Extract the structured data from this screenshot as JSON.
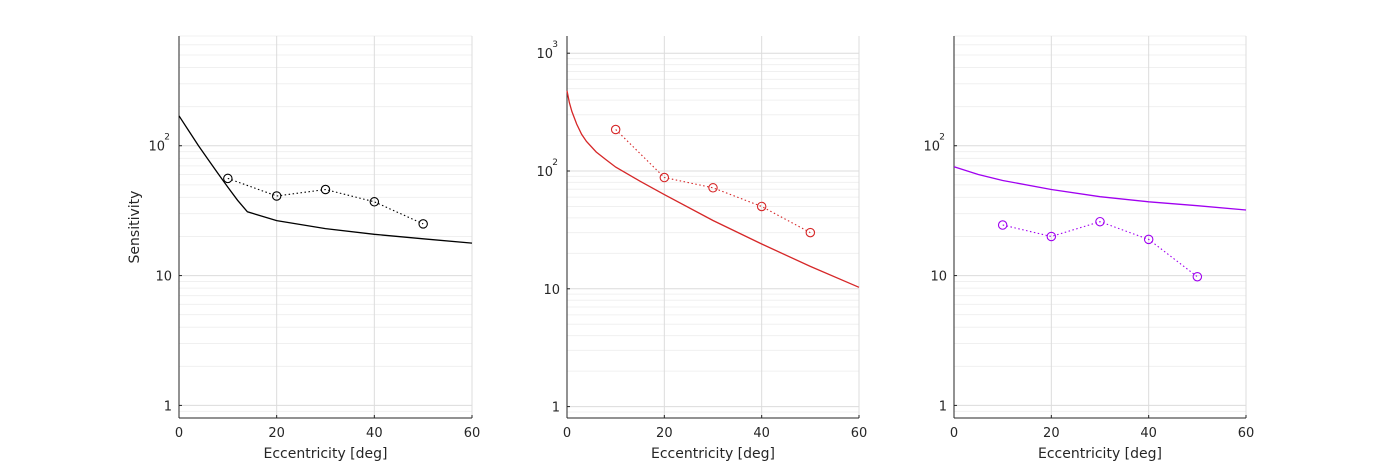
{
  "chart_data": [
    {
      "type": "line",
      "xlabel": "Eccentricity [deg]",
      "ylabel": "Sensitivity",
      "xlim": [
        0,
        60
      ],
      "ylim": [
        0.8,
        700
      ],
      "yscale": "log",
      "grid": true,
      "x_ticks": [
        "0",
        "20",
        "40",
        "60"
      ],
      "y_ticks": [
        {
          "value": 1,
          "base": "1",
          "exp": ""
        },
        {
          "value": 10,
          "base": "10",
          "exp": ""
        },
        {
          "value": 100,
          "base": "10",
          "exp": "2"
        }
      ],
      "color": "#000000",
      "series": [
        {
          "style": "markers-dotted",
          "x": [
            10,
            20,
            30,
            40,
            50
          ],
          "y": [
            56,
            41,
            46,
            37,
            25
          ]
        },
        {
          "style": "solid",
          "x": [
            0,
            2,
            4,
            6,
            8,
            10,
            12,
            14,
            20,
            30,
            40,
            50,
            60
          ],
          "y": [
            170,
            130,
            100,
            78,
            61,
            48,
            38,
            31,
            26.5,
            23,
            20.8,
            19.2,
            17.8
          ]
        }
      ]
    },
    {
      "type": "line",
      "xlabel": "Eccentricity [deg]",
      "ylabel": "",
      "xlim": [
        0,
        60
      ],
      "ylim": [
        0.8,
        1400
      ],
      "yscale": "log",
      "grid": true,
      "x_ticks": [
        "0",
        "20",
        "40",
        "60"
      ],
      "y_ticks": [
        {
          "value": 1,
          "base": "1",
          "exp": ""
        },
        {
          "value": 10,
          "base": "10",
          "exp": ""
        },
        {
          "value": 100,
          "base": "10",
          "exp": "2"
        },
        {
          "value": 1000,
          "base": "10",
          "exp": "3"
        }
      ],
      "color": "#d62728",
      "series": [
        {
          "style": "markers-dotted",
          "x": [
            10,
            20,
            30,
            40,
            50
          ],
          "y": [
            225,
            88,
            72,
            50,
            30
          ]
        },
        {
          "style": "solid",
          "x": [
            0,
            0.5,
            1,
            2,
            3,
            4,
            6,
            8,
            10,
            15,
            20,
            30,
            40,
            50,
            60
          ],
          "y": [
            480,
            380,
            320,
            250,
            205,
            178,
            145,
            125,
            108,
            82,
            63,
            38,
            24,
            15.5,
            10.3
          ]
        }
      ]
    },
    {
      "type": "line",
      "xlabel": "Eccentricity [deg]",
      "ylabel": "",
      "xlim": [
        0,
        60
      ],
      "ylim": [
        0.8,
        700
      ],
      "yscale": "log",
      "grid": true,
      "x_ticks": [
        "0",
        "20",
        "40",
        "60"
      ],
      "y_ticks": [
        {
          "value": 1,
          "base": "1",
          "exp": ""
        },
        {
          "value": 10,
          "base": "10",
          "exp": ""
        },
        {
          "value": 100,
          "base": "10",
          "exp": "2"
        }
      ],
      "color": "#a000f0",
      "series": [
        {
          "style": "markers-dotted",
          "x": [
            10,
            20,
            30,
            40,
            50
          ],
          "y": [
            24.5,
            20,
            26,
            19,
            9.8
          ]
        },
        {
          "style": "solid",
          "x": [
            0,
            5,
            10,
            20,
            30,
            40,
            50,
            60
          ],
          "y": [
            69,
            60,
            54,
            46,
            40.5,
            37,
            34.5,
            32
          ]
        }
      ]
    }
  ]
}
